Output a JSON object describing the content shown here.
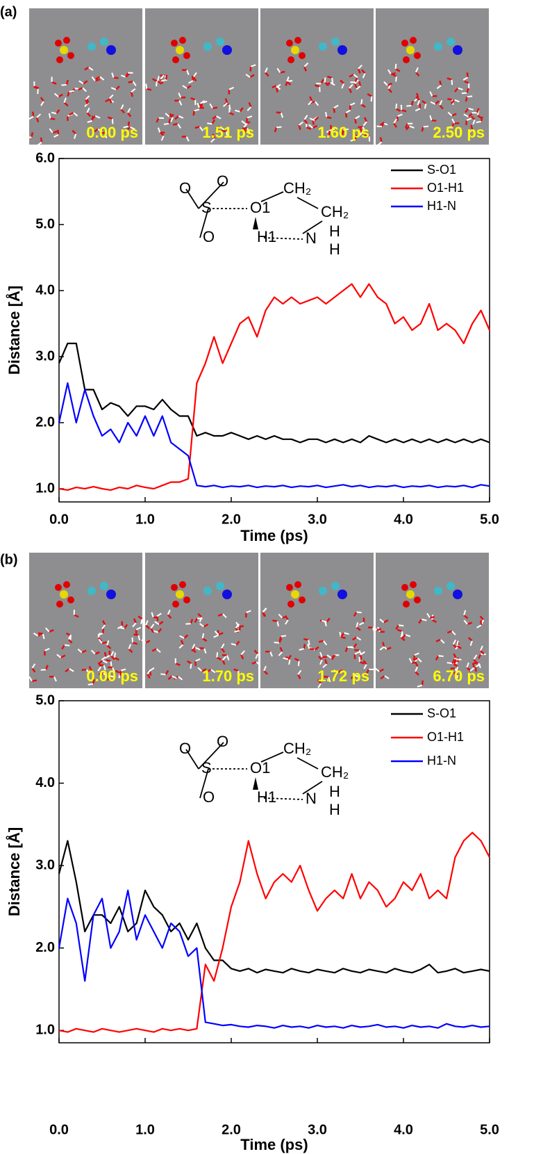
{
  "chart_data": [
    {
      "type": "line",
      "panel_label": "(a)",
      "snapshots": [
        "0.00 ps",
        "1.51 ps",
        "1.60 ps",
        "2.50 ps"
      ],
      "inset_labels": [
        "O",
        "O",
        "S",
        "O",
        "O1",
        "CH₂",
        "CH₂",
        "H1",
        "N",
        "H",
        "H"
      ],
      "x_label": "Time (ps)",
      "y_label": "Distance [Å]",
      "xlim": [
        0,
        5
      ],
      "ylim": [
        0.8,
        6.0
      ],
      "xticks": [
        {
          "value": 0,
          "label": "0.0"
        },
        {
          "value": 1,
          "label": "1.0"
        },
        {
          "value": 2,
          "label": "2.0"
        },
        {
          "value": 3,
          "label": "3.0"
        },
        {
          "value": 4,
          "label": "4.0"
        },
        {
          "value": 5,
          "label": "5.0"
        }
      ],
      "yticks": [
        {
          "value": 1,
          "label": "1.0"
        },
        {
          "value": 2,
          "label": "2.0"
        },
        {
          "value": 3,
          "label": "3.0"
        },
        {
          "value": 4,
          "label": "4.0"
        },
        {
          "value": 5,
          "label": "5.0"
        },
        {
          "value": 6,
          "label": "6.0"
        }
      ],
      "legend": "upper right",
      "x": [
        0,
        0.1,
        0.2,
        0.3,
        0.4,
        0.5,
        0.6,
        0.7,
        0.8,
        0.9,
        1.0,
        1.1,
        1.2,
        1.3,
        1.4,
        1.5,
        1.6,
        1.7,
        1.8,
        1.9,
        2.0,
        2.1,
        2.2,
        2.3,
        2.4,
        2.5,
        2.6,
        2.7,
        2.8,
        2.9,
        3.0,
        3.1,
        3.2,
        3.3,
        3.4,
        3.5,
        3.6,
        3.7,
        3.8,
        3.9,
        4.0,
        4.1,
        4.2,
        4.3,
        4.4,
        4.5,
        4.6,
        4.7,
        4.8,
        4.9,
        5.0
      ],
      "series": [
        {
          "name": "S-O1",
          "color": "#000000",
          "values": [
            2.9,
            3.2,
            3.2,
            2.5,
            2.5,
            2.2,
            2.3,
            2.25,
            2.1,
            2.25,
            2.25,
            2.2,
            2.35,
            2.2,
            2.1,
            2.1,
            1.8,
            1.85,
            1.8,
            1.8,
            1.85,
            1.8,
            1.75,
            1.8,
            1.75,
            1.8,
            1.75,
            1.75,
            1.7,
            1.75,
            1.75,
            1.7,
            1.75,
            1.7,
            1.75,
            1.7,
            1.8,
            1.75,
            1.7,
            1.75,
            1.7,
            1.75,
            1.7,
            1.75,
            1.7,
            1.75,
            1.7,
            1.75,
            1.7,
            1.75,
            1.7
          ]
        },
        {
          "name": "O1-H1",
          "color": "#ff0000",
          "values": [
            1.0,
            0.98,
            1.02,
            1.0,
            1.03,
            1.0,
            0.98,
            1.02,
            1.0,
            1.05,
            1.02,
            1.0,
            1.05,
            1.1,
            1.1,
            1.15,
            2.6,
            2.9,
            3.3,
            2.9,
            3.2,
            3.5,
            3.6,
            3.3,
            3.7,
            3.9,
            3.8,
            3.9,
            3.8,
            3.85,
            3.9,
            3.8,
            3.9,
            4.0,
            4.1,
            3.9,
            4.1,
            3.9,
            3.8,
            3.5,
            3.6,
            3.4,
            3.5,
            3.8,
            3.4,
            3.5,
            3.4,
            3.2,
            3.5,
            3.7,
            3.4
          ]
        },
        {
          "name": "H1-N",
          "color": "#0000ff",
          "values": [
            2.0,
            2.6,
            2.0,
            2.5,
            2.1,
            1.8,
            1.9,
            1.7,
            2.0,
            1.8,
            2.1,
            1.8,
            2.1,
            1.7,
            1.6,
            1.5,
            1.05,
            1.03,
            1.05,
            1.02,
            1.04,
            1.03,
            1.05,
            1.02,
            1.04,
            1.03,
            1.05,
            1.02,
            1.04,
            1.03,
            1.05,
            1.02,
            1.04,
            1.06,
            1.03,
            1.05,
            1.02,
            1.04,
            1.03,
            1.05,
            1.02,
            1.04,
            1.03,
            1.05,
            1.02,
            1.04,
            1.03,
            1.05,
            1.02,
            1.06,
            1.04
          ]
        }
      ]
    },
    {
      "type": "line",
      "panel_label": "(b)",
      "snapshots": [
        "0.00 ps",
        "1.70 ps",
        "1.72 ps",
        "6.70 ps"
      ],
      "inset_labels": [
        "O",
        "O",
        "S",
        "O",
        "O1",
        "CH₂",
        "CH₂",
        "H1",
        "N",
        "H",
        "H"
      ],
      "x_label": "Time (ps)",
      "y_label": "Distance [Å]",
      "xlim": [
        0,
        5
      ],
      "ylim": [
        0.85,
        5.0
      ],
      "xticks": [
        {
          "value": 0,
          "label": "0.0"
        },
        {
          "value": 1,
          "label": "1.0"
        },
        {
          "value": 2,
          "label": "2.0"
        },
        {
          "value": 3,
          "label": "3.0"
        },
        {
          "value": 4,
          "label": "4.0"
        },
        {
          "value": 5,
          "label": "5.0"
        }
      ],
      "yticks": [
        {
          "value": 1,
          "label": "1.0"
        },
        {
          "value": 2,
          "label": "2.0"
        },
        {
          "value": 3,
          "label": "3.0"
        },
        {
          "value": 4,
          "label": "4.0"
        },
        {
          "value": 5,
          "label": "5.0"
        }
      ],
      "legend": "upper right",
      "x": [
        0,
        0.1,
        0.2,
        0.3,
        0.4,
        0.5,
        0.6,
        0.7,
        0.8,
        0.9,
        1.0,
        1.1,
        1.2,
        1.3,
        1.4,
        1.5,
        1.6,
        1.7,
        1.8,
        1.9,
        2.0,
        2.1,
        2.2,
        2.3,
        2.4,
        2.5,
        2.6,
        2.7,
        2.8,
        2.9,
        3.0,
        3.1,
        3.2,
        3.3,
        3.4,
        3.5,
        3.6,
        3.7,
        3.8,
        3.9,
        4.0,
        4.1,
        4.2,
        4.3,
        4.4,
        4.5,
        4.6,
        4.7,
        4.8,
        4.9,
        5.0
      ],
      "series": [
        {
          "name": "S-O1",
          "color": "#000000",
          "values": [
            2.9,
            3.3,
            2.8,
            2.2,
            2.4,
            2.4,
            2.3,
            2.5,
            2.2,
            2.3,
            2.7,
            2.5,
            2.4,
            2.2,
            2.3,
            2.1,
            2.3,
            2.0,
            1.85,
            1.85,
            1.75,
            1.72,
            1.75,
            1.7,
            1.74,
            1.72,
            1.7,
            1.75,
            1.72,
            1.7,
            1.74,
            1.72,
            1.7,
            1.75,
            1.72,
            1.7,
            1.74,
            1.72,
            1.7,
            1.75,
            1.72,
            1.7,
            1.74,
            1.8,
            1.7,
            1.72,
            1.75,
            1.7,
            1.72,
            1.74,
            1.72
          ]
        },
        {
          "name": "O1-H1",
          "color": "#ff0000",
          "values": [
            1.0,
            0.98,
            1.02,
            1.0,
            0.98,
            1.02,
            1.0,
            0.98,
            1.0,
            1.02,
            1.0,
            0.98,
            1.02,
            1.0,
            1.02,
            1.0,
            1.02,
            1.8,
            1.6,
            2.0,
            2.5,
            2.8,
            3.3,
            2.9,
            2.6,
            2.8,
            2.9,
            2.8,
            3.0,
            2.7,
            2.45,
            2.6,
            2.7,
            2.6,
            2.9,
            2.6,
            2.8,
            2.7,
            2.5,
            2.6,
            2.8,
            2.7,
            2.9,
            2.6,
            2.7,
            2.6,
            3.1,
            3.3,
            3.4,
            3.3,
            3.1
          ]
        },
        {
          "name": "H1-N",
          "color": "#0000ff",
          "values": [
            2.0,
            2.6,
            2.3,
            1.6,
            2.4,
            2.6,
            2.0,
            2.2,
            2.7,
            2.1,
            2.4,
            2.2,
            2.0,
            2.3,
            2.2,
            1.9,
            2.0,
            1.1,
            1.08,
            1.06,
            1.07,
            1.05,
            1.04,
            1.06,
            1.05,
            1.03,
            1.06,
            1.04,
            1.05,
            1.03,
            1.06,
            1.04,
            1.05,
            1.03,
            1.06,
            1.04,
            1.05,
            1.07,
            1.04,
            1.05,
            1.03,
            1.06,
            1.04,
            1.05,
            1.03,
            1.08,
            1.05,
            1.04,
            1.06,
            1.04,
            1.05
          ]
        }
      ]
    }
  ]
}
